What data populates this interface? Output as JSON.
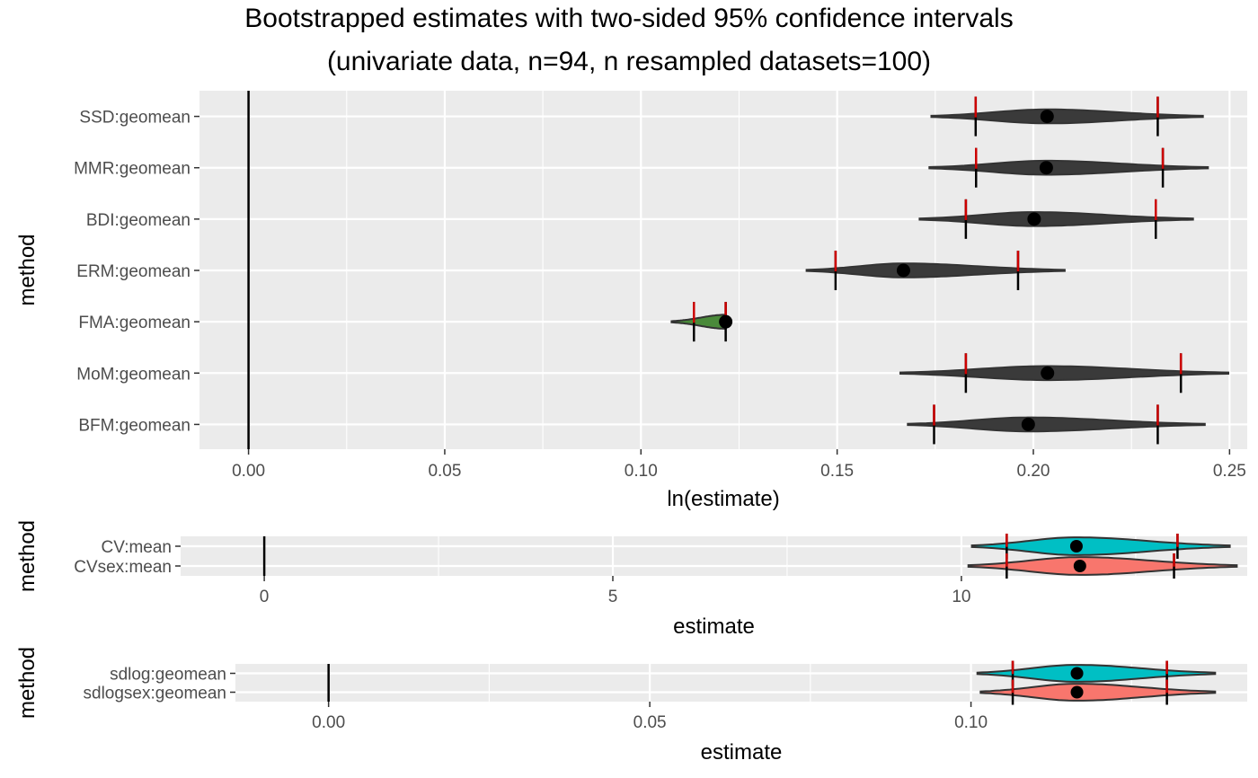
{
  "page": {
    "title_line1": "Bootstrapped estimates with two-sided 95% confidence intervals",
    "title_line2": "(univariate data, n=94, n resampled datasets=100)"
  },
  "colors": {
    "panel_bg": "#ebebeb",
    "grid": "#ffffff",
    "ci_marker": "#cc0000",
    "violin_outline": "#333333",
    "point": "#000000",
    "teal_fill": "#00bfc4",
    "salmon_fill": "#f8766d",
    "fma_fill": "#4a8a3a"
  },
  "chart_data": [
    {
      "type": "violin",
      "xlabel": "ln(estimate)",
      "ylabel": "method",
      "xlim": [
        -0.0125,
        0.2545
      ],
      "x_ticks": [
        0.0,
        0.05,
        0.1,
        0.15,
        0.2,
        0.25
      ],
      "x_tick_labels": [
        "0.00",
        "0.05",
        "0.10",
        "0.15",
        "0.20",
        "0.25"
      ],
      "reference_line": 0,
      "grid": true,
      "categories": [
        "SSD:geomean",
        "MMR:geomean",
        "BDI:geomean",
        "ERM:geomean",
        "FMA:geomean",
        "MoM:geomean",
        "BFM:geomean"
      ],
      "series": [
        {
          "method": "SSD:geomean",
          "estimate": 0.2035,
          "ci_lower": 0.1853,
          "ci_upper": 0.2317,
          "min": 0.174,
          "max": 0.2432,
          "fill": "#3a3a3a"
        },
        {
          "method": "MMR:geomean",
          "estimate": 0.2033,
          "ci_lower": 0.1854,
          "ci_upper": 0.233,
          "min": 0.1735,
          "max": 0.2445,
          "fill": "#3a3a3a"
        },
        {
          "method": "BDI:geomean",
          "estimate": 0.2002,
          "ci_lower": 0.1828,
          "ci_upper": 0.2312,
          "min": 0.171,
          "max": 0.2407,
          "fill": "#3a3a3a"
        },
        {
          "method": "ERM:geomean",
          "estimate": 0.1669,
          "ci_lower": 0.1496,
          "ci_upper": 0.1961,
          "min": 0.1422,
          "max": 0.208,
          "fill": "#3a3a3a"
        },
        {
          "method": "FMA:geomean",
          "estimate": 0.1216,
          "ci_lower": 0.1135,
          "ci_upper": 0.1216,
          "min": 0.1078,
          "max": 0.1225,
          "fill": "#4a8a3a"
        },
        {
          "method": "MoM:geomean",
          "estimate": 0.2036,
          "ci_lower": 0.1828,
          "ci_upper": 0.2376,
          "min": 0.1661,
          "max": 0.2497,
          "fill": "#3a3a3a"
        },
        {
          "method": "BFM:geomean",
          "estimate": 0.1987,
          "ci_lower": 0.1747,
          "ci_upper": 0.2317,
          "min": 0.168,
          "max": 0.2437,
          "fill": "#3a3a3a"
        }
      ]
    },
    {
      "type": "violin",
      "xlabel": "estimate",
      "ylabel": "method",
      "xlim": [
        -1.2,
        14.1
      ],
      "x_ticks": [
        0,
        5,
        10
      ],
      "x_tick_labels": [
        "0",
        "5",
        "10"
      ],
      "reference_line": 0,
      "grid": true,
      "categories": [
        "CV:mean",
        "CVsex:mean"
      ],
      "series": [
        {
          "method": "CV:mean",
          "estimate": 11.65,
          "ci_lower": 10.65,
          "ci_upper": 13.1,
          "min": 10.15,
          "max": 13.85,
          "fill": "#00bfc4"
        },
        {
          "method": "CVsex:mean",
          "estimate": 11.7,
          "ci_lower": 10.65,
          "ci_upper": 13.05,
          "min": 10.1,
          "max": 13.95,
          "fill": "#f8766d"
        }
      ]
    },
    {
      "type": "violin",
      "xlabel": "estimate",
      "ylabel": "method",
      "xlim": [
        -0.0145,
        0.143
      ],
      "x_ticks": [
        0.0,
        0.05,
        0.1
      ],
      "x_tick_labels": [
        "0.00",
        "0.05",
        "0.10"
      ],
      "reference_line": 0,
      "grid": true,
      "categories": [
        "sdlog:geomean",
        "sdlogsex:geomean"
      ],
      "series": [
        {
          "method": "sdlog:geomean",
          "estimate": 0.1165,
          "ci_lower": 0.1065,
          "ci_upper": 0.1305,
          "min": 0.101,
          "max": 0.138,
          "fill": "#00bfc4"
        },
        {
          "method": "sdlogsex:geomean",
          "estimate": 0.1165,
          "ci_lower": 0.1065,
          "ci_upper": 0.1305,
          "min": 0.1015,
          "max": 0.138,
          "fill": "#f8766d"
        }
      ]
    }
  ]
}
